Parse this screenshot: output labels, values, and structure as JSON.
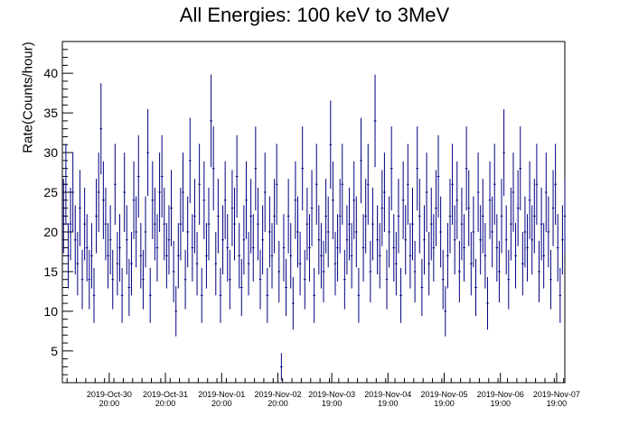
{
  "chart_data": {
    "type": "scatter",
    "title": "All Energies:  100 keV to 3MeV",
    "xlabel": "",
    "ylabel": "Rate(Counts/hour)",
    "x_unit": "hours from start of 2019-Oct-30 00:00",
    "x_range_hours": [
      0,
      214.5
    ],
    "ylim": [
      1,
      44
    ],
    "y_ticks": [
      5,
      10,
      15,
      20,
      25,
      30,
      35,
      40
    ],
    "x_tick_labels": [
      {
        "date": "2019-Oct-30",
        "time": "20:00",
        "hour": 20
      },
      {
        "date": "2019-Oct-31",
        "time": "20:00",
        "hour": 44
      },
      {
        "date": "2019-Nov-01",
        "time": "20:00",
        "hour": 68
      },
      {
        "date": "2019-Nov-02",
        "time": "20:00",
        "hour": 92
      },
      {
        "date": "2019-Nov-03",
        "time": "19:00",
        "hour": 115
      },
      {
        "date": "2019-Nov-04",
        "time": "19:00",
        "hour": 139
      },
      {
        "date": "2019-Nov-05",
        "time": "19:00",
        "hour": 163
      },
      {
        "date": "2019-Nov-06",
        "time": "19:00",
        "hour": 187
      },
      {
        "date": "2019-Nov-07",
        "time": "19:00",
        "hour": 211
      }
    ],
    "grid": false,
    "legend": "none",
    "marker_color": "#000080",
    "series": [
      {
        "x_start_hour": 0,
        "x_step_hours": 1,
        "values": [
          22,
          26,
          17,
          21,
          25,
          19,
          16,
          23,
          14,
          21,
          18,
          14,
          17,
          12,
          22,
          25,
          33,
          24,
          21,
          17,
          19,
          14,
          26,
          16,
          18,
          12,
          25,
          19,
          13,
          16,
          24,
          20,
          27,
          17,
          14,
          20,
          30,
          12,
          24,
          21,
          18,
          25,
          27,
          21,
          17,
          19,
          23,
          15,
          10,
          17,
          21,
          25,
          14,
          20,
          29,
          18,
          22,
          16,
          26,
          12,
          24,
          17,
          21,
          34,
          28,
          16,
          22,
          12,
          19,
          24,
          18,
          14,
          23,
          21,
          27,
          17,
          13,
          19,
          24,
          16,
          22,
          18,
          28,
          21,
          14,
          19,
          25,
          12,
          20,
          17,
          22,
          26,
          15,
          3,
          18,
          13,
          22,
          17,
          11,
          24,
          20,
          16,
          28,
          14,
          21,
          18,
          23,
          12,
          26,
          19,
          17,
          15,
          22,
          20,
          31,
          24,
          16,
          18,
          22,
          26,
          14,
          19,
          21,
          17,
          24,
          20,
          12,
          29,
          18,
          22,
          26,
          15,
          21,
          34,
          19,
          17,
          23,
          25,
          14,
          20,
          28,
          18,
          16,
          22,
          12,
          24,
          19,
          26,
          17,
          21,
          15,
          28,
          22,
          13,
          19,
          25,
          16,
          21,
          18,
          23,
          27,
          20,
          14,
          10,
          17,
          22,
          26,
          19,
          24,
          15,
          21,
          18,
          28,
          23,
          16,
          20,
          13,
          25,
          19,
          22,
          17,
          11,
          24,
          20,
          26,
          18,
          15,
          22,
          30,
          19,
          14,
          21,
          25,
          17,
          23,
          28,
          16,
          20,
          18,
          24,
          19,
          22,
          26,
          15,
          21,
          17,
          25,
          20,
          14,
          23,
          26,
          18,
          12,
          19,
          22
        ]
      }
    ]
  }
}
